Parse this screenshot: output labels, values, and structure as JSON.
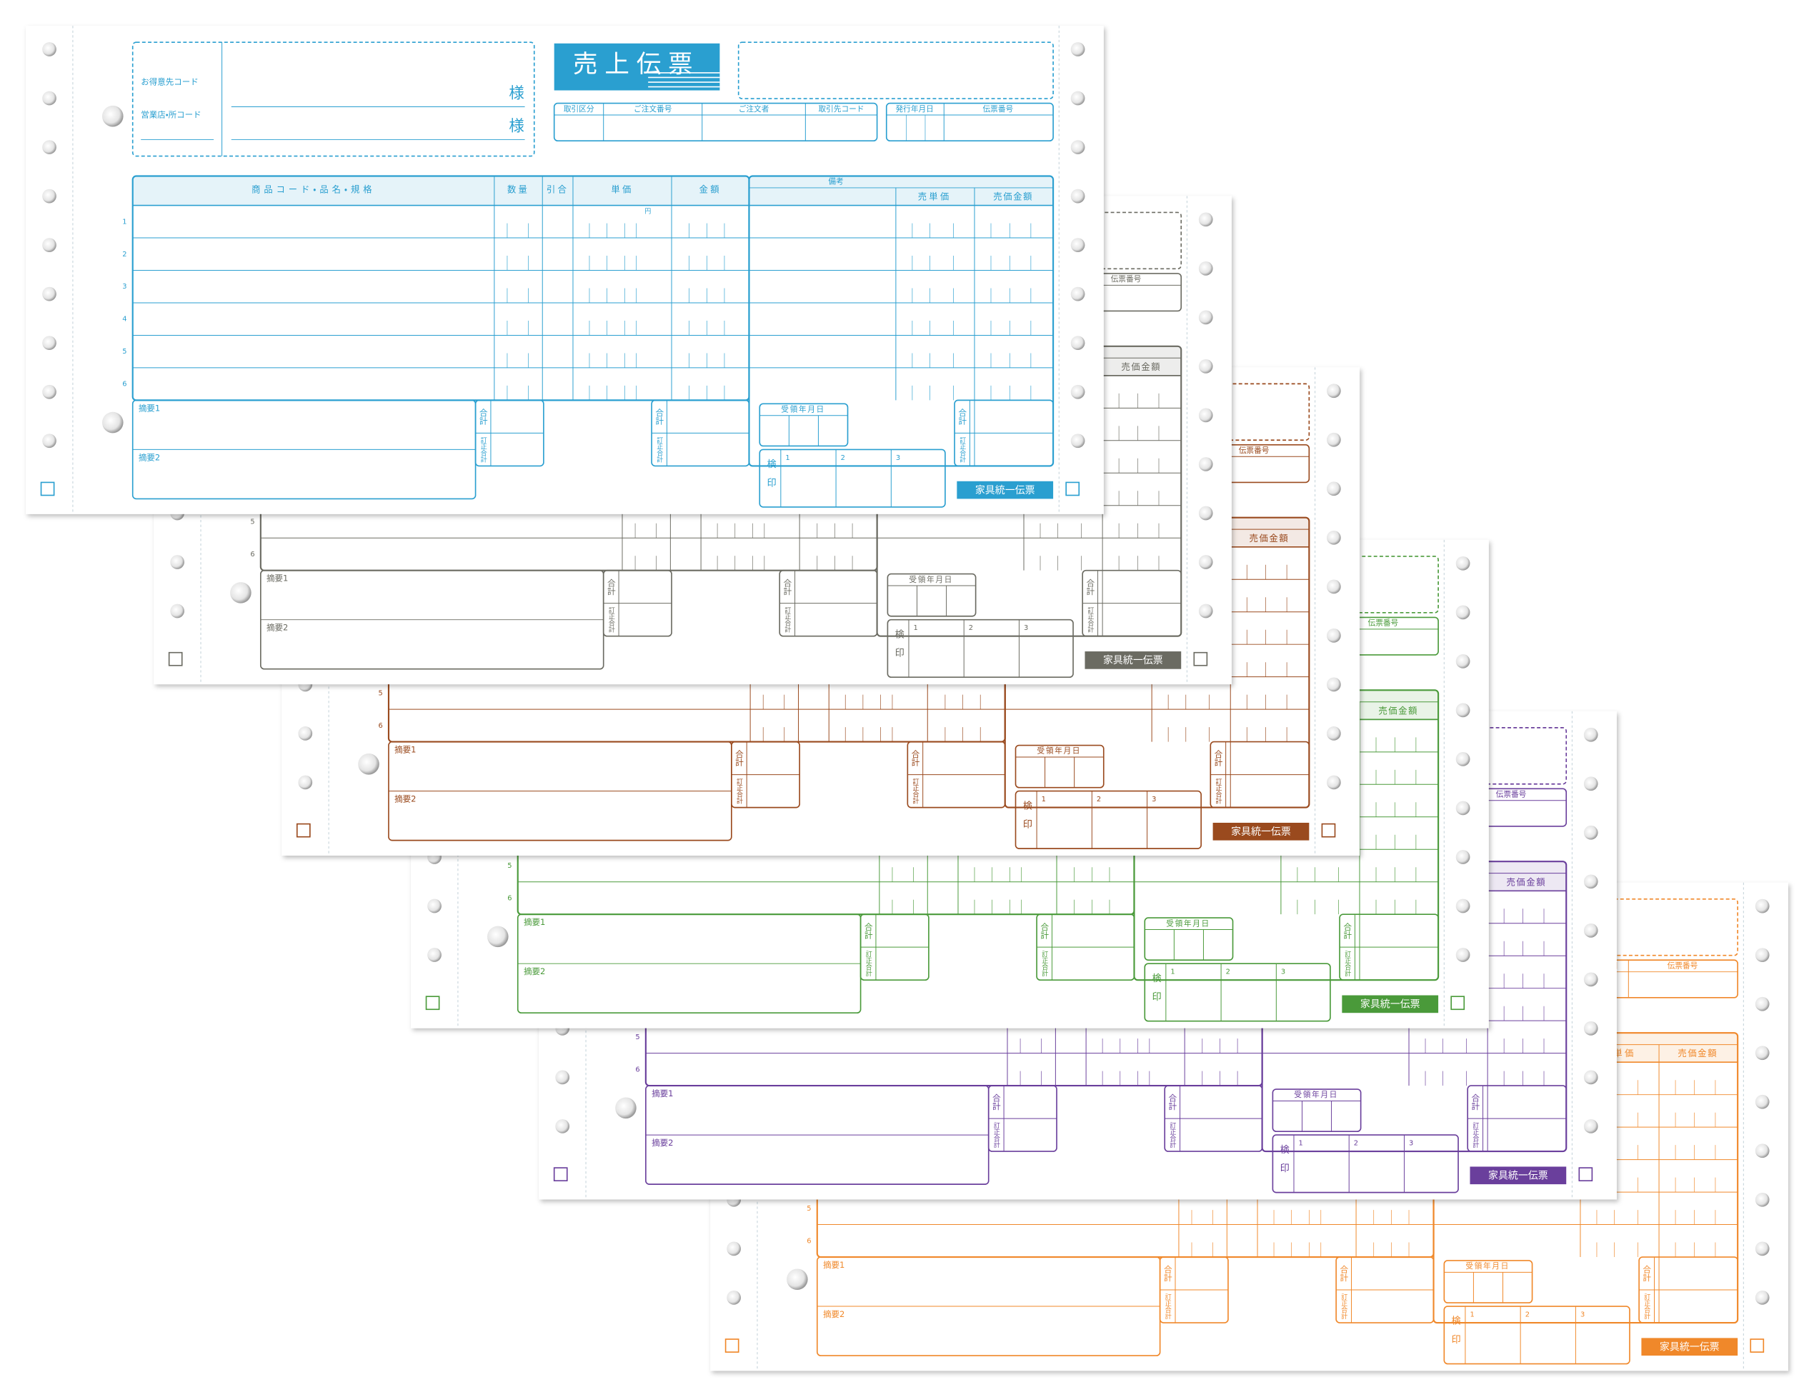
{
  "sheets": [
    {
      "color": "#2a9fd0"
    },
    {
      "color": "#6b6b62"
    },
    {
      "color": "#9a4a1e"
    },
    {
      "color": "#4a9a3a"
    },
    {
      "color": "#6a3f9c"
    },
    {
      "color": "#f0882a"
    }
  ],
  "form": {
    "title": "売上伝票",
    "customer_code_label": "お得意先コード",
    "branch_code_label": "営業店・所コード",
    "honorific": "様",
    "header_fields": [
      "取引区分",
      "ご注文番号",
      "ご注文者",
      "取引先コード"
    ],
    "date_fields": [
      "発行年月日",
      "伝票番号"
    ],
    "columns": [
      "商品コード・品名・規格",
      "数量",
      "引合",
      "単価",
      "金額"
    ],
    "remarks": "備考",
    "right_columns": [
      "売単価",
      "売価金額"
    ],
    "yen": "円",
    "rows": [
      "1",
      "2",
      "3",
      "4",
      "5",
      "6"
    ],
    "summary": [
      "摘要1",
      "摘要2"
    ],
    "total": "合計",
    "corrected_total": "訂正合計",
    "received_date": "受領年月日",
    "inspection": "検印",
    "inspection_slots": [
      "1",
      "2",
      "3"
    ],
    "footer": "家具統一伝票"
  }
}
